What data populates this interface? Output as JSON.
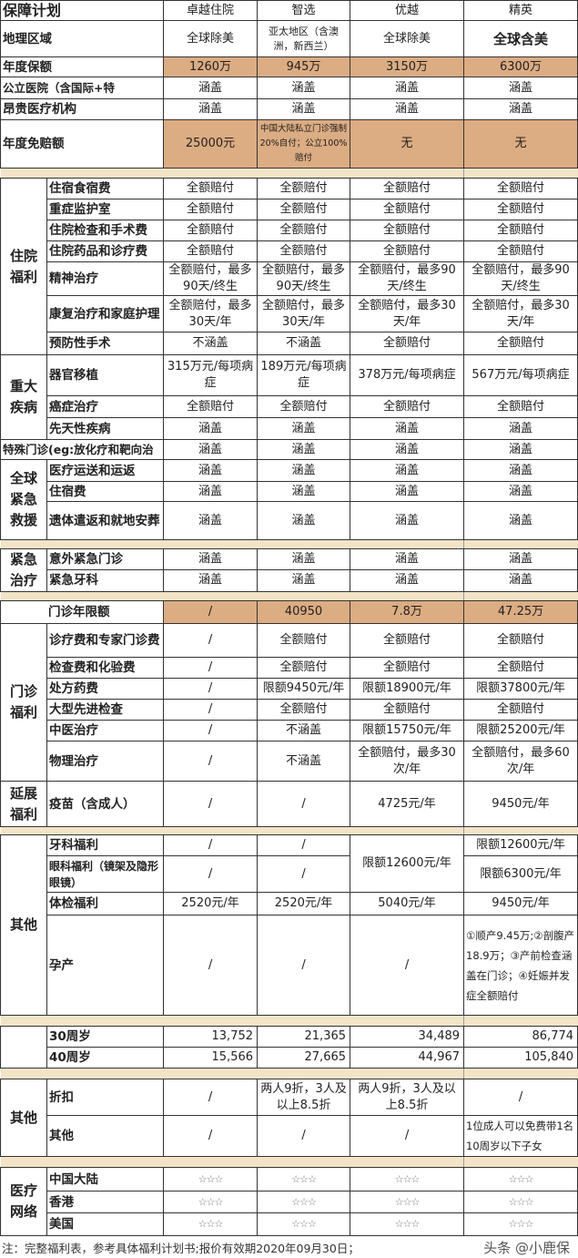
{
  "header": {
    "label": "保障计划",
    "plans": [
      "卓越住院",
      "智选",
      "优越",
      "精英"
    ]
  },
  "colors": {
    "highlight": "#dcac82",
    "separator": "#f3e4c7"
  },
  "sections": [
    {
      "group": null,
      "rows": [
        {
          "label": "地理区域",
          "cells": [
            "全球除美",
            "亚太地区（含澳洲，新西兰）",
            "全球除美",
            "全球含美"
          ]
        },
        {
          "label": "年度保额",
          "highlight": true,
          "cells": [
            "1260万",
            "945万",
            "3150万",
            "6300万"
          ]
        },
        {
          "label": "公立医院（含国际+特",
          "cells": [
            "涵盖",
            "涵盖",
            "涵盖",
            "涵盖"
          ]
        },
        {
          "label": "昂贵医疗机构",
          "cells": [
            "涵盖",
            "涵盖",
            "涵盖",
            "涵盖"
          ]
        },
        {
          "label": "年度免赔额",
          "highlight": true,
          "cells": [
            "25000元",
            "中国大陆私立门诊强制20%自付；公立100%赔付",
            "无",
            "无"
          ]
        }
      ]
    },
    {
      "sep": true
    },
    {
      "group": "住院福利",
      "rows": [
        {
          "label": "住宿食宿费",
          "cells": [
            "全额赔付",
            "全额赔付",
            "全额赔付",
            "全额赔付"
          ]
        },
        {
          "label": "重症监护室",
          "cells": [
            "全额赔付",
            "全额赔付",
            "全额赔付",
            "全额赔付"
          ]
        },
        {
          "label": "住院检查和手术费",
          "cells": [
            "全额赔付",
            "全额赔付",
            "全额赔付",
            "全额赔付"
          ]
        },
        {
          "label": "住院药品和诊疗费",
          "cells": [
            "全额赔付",
            "全额赔付",
            "全额赔付",
            "全额赔付"
          ]
        },
        {
          "label": "精神治疗",
          "cells": [
            "全额赔付，最多90天/终生",
            "全额赔付，最多90天/终生",
            "全额赔付，最多90天/终生",
            "全额赔付，最多90天/终生"
          ]
        },
        {
          "label": "康复治疗和家庭护理",
          "cells": [
            "全额赔付，最多30天/年",
            "全额赔付，最多30天/年",
            "全额赔付，最多30天/年",
            "全额赔付，最多30天/年"
          ]
        },
        {
          "label": "预防性手术",
          "cells": [
            "不涵盖",
            "不涵盖",
            "全额赔付",
            "全额赔付"
          ]
        }
      ]
    },
    {
      "group": "重大疾病",
      "rows": [
        {
          "label": "器官移植",
          "cells": [
            "315万元/每项病症",
            "189万元/每项病症",
            "378万元/每项病症",
            "567万元/每项病症"
          ]
        },
        {
          "label": "癌症治疗",
          "cells": [
            "全额赔付",
            "全额赔付",
            "全额赔付",
            "全额赔付"
          ]
        },
        {
          "label": "先天性疾病",
          "cells": [
            "涵盖",
            "涵盖",
            "涵盖",
            "涵盖"
          ]
        }
      ]
    },
    {
      "group": null,
      "rows": [
        {
          "label": "特殊门诊(eg:放化疗和靶向治",
          "cells": [
            "涵盖",
            "涵盖",
            "涵盖",
            "涵盖"
          ]
        }
      ]
    },
    {
      "group": "全球紧急救援",
      "rows": [
        {
          "label": "医疗运送和运返",
          "cells": [
            "涵盖",
            "涵盖",
            "涵盖",
            "涵盖"
          ]
        },
        {
          "label": "住宿费",
          "cells": [
            "涵盖",
            "涵盖",
            "涵盖",
            "涵盖"
          ]
        },
        {
          "label": "遗体遣返和就地安葬",
          "cells": [
            "涵盖",
            "涵盖",
            "涵盖",
            "涵盖"
          ]
        }
      ]
    },
    {
      "sep": true
    },
    {
      "group": "紧急治疗",
      "rows": [
        {
          "label": "意外紧急门诊",
          "cells": [
            "涵盖",
            "涵盖",
            "涵盖",
            "涵盖"
          ]
        },
        {
          "label": "紧急牙科",
          "cells": [
            "涵盖",
            "涵盖",
            "涵盖",
            "涵盖"
          ]
        }
      ]
    },
    {
      "sep": true
    },
    {
      "group": null,
      "indent": true,
      "rows": [
        {
          "label": "门诊年限额",
          "highlight": true,
          "cells": [
            "/",
            "40950",
            "7.8万",
            "47.25万"
          ]
        }
      ]
    },
    {
      "group": "门诊福利",
      "rows": [
        {
          "label": "诊疗费和专家门诊费",
          "cells": [
            "/",
            "全额赔付",
            "全额赔付",
            "全额赔付"
          ]
        },
        {
          "label": "检查费和化验费",
          "cells": [
            "/",
            "全额赔付",
            "全额赔付",
            "全额赔付"
          ]
        },
        {
          "label": "处方药费",
          "cells": [
            "/",
            "限额9450元/年",
            "限额18900元/年",
            "限额37800元/年"
          ]
        },
        {
          "label": "大型先进检查",
          "cells": [
            "/",
            "全额赔付",
            "全额赔付",
            "全额赔付"
          ]
        },
        {
          "label": "中医治疗",
          "cells": [
            "/",
            "不涵盖",
            "限额15750元/年",
            "限额25200元/年"
          ]
        },
        {
          "label": "物理治疗",
          "cells": [
            "/",
            "不涵盖",
            "全额赔付，最多30次/年",
            "全额赔付，最多60次/年"
          ]
        }
      ]
    },
    {
      "group": "延展福利",
      "rows": [
        {
          "label": "疫苗（含成人）",
          "cells": [
            "/",
            "/",
            "4725元/年",
            "9450元/年"
          ]
        }
      ]
    },
    {
      "sep": true
    },
    {
      "group": "其他",
      "rows": [
        {
          "label": "牙科福利",
          "cells": [
            "/",
            "/",
            "限额12600元/年",
            "限额12600元/年"
          ],
          "rowspan_col": 2
        },
        {
          "label": "眼科福利（镜架及隐形眼镜）",
          "cells": [
            "/",
            "/",
            null,
            "限额6300元/年"
          ]
        },
        {
          "label": "体检福利",
          "cells": [
            "2520元/年",
            "2520元/年",
            "5040元/年",
            "9450元/年"
          ]
        },
        {
          "label": "孕产",
          "cells": [
            "/",
            "/",
            "/",
            "①顺产9.45万;②剖腹产18.9万；③产前检查涵盖在门诊；④妊娠并发症全额赔付"
          ]
        }
      ]
    },
    {
      "sep": true
    },
    {
      "group": "",
      "align": "right",
      "rows": [
        {
          "label": "30周岁",
          "cells": [
            "13,752",
            "21,365",
            "34,489",
            "86,774"
          ]
        },
        {
          "label": "40周岁",
          "cells": [
            "15,566",
            "27,665",
            "44,967",
            "105,840"
          ]
        }
      ]
    },
    {
      "sep": true
    },
    {
      "group": "其他",
      "rows": [
        {
          "label": "折扣",
          "cells": [
            "/",
            "两人9折，3人及以上8.5折",
            "两人9折，3人及以上8.5折",
            "/"
          ]
        },
        {
          "label": "其他",
          "cells": [
            "/",
            "/",
            "/",
            "1位成人可以免费带1名10周岁以下子女"
          ]
        }
      ]
    },
    {
      "sep": true
    },
    {
      "group": "医疗网络",
      "stars": true,
      "rows": [
        {
          "label": "中国大陆",
          "cells": [
            "☆☆☆",
            "☆☆☆",
            "☆☆☆",
            "☆☆☆"
          ]
        },
        {
          "label": "香港",
          "cells": [
            "☆☆☆",
            "☆☆☆",
            "☆☆☆",
            "☆☆☆"
          ]
        },
        {
          "label": "美国",
          "cells": [
            "☆☆☆",
            "☆☆☆",
            "☆☆☆",
            "☆☆☆"
          ]
        }
      ]
    }
  ],
  "note": "注：完整福利表，参考具体福利计划书;报价有效期2020年09月30日；",
  "watermark": "头条 @小鹿保"
}
